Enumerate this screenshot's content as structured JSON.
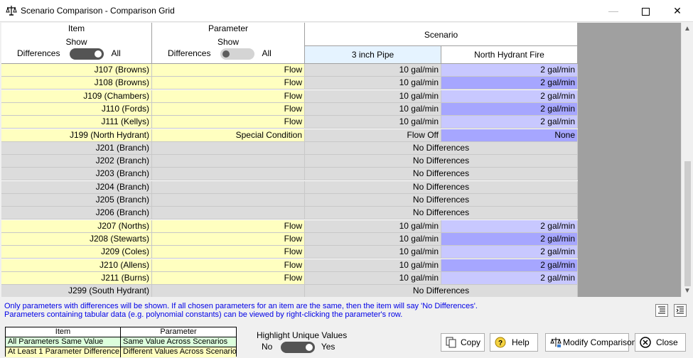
{
  "window": {
    "title": "Scenario Comparison - Comparison Grid",
    "icons": {
      "app": "scale-icon",
      "minimize": "minimize-icon",
      "maximize": "maximize-icon",
      "close": "close-icon"
    }
  },
  "grid": {
    "item_header": {
      "title": "Item",
      "show_label": "Show",
      "toggle_left": "Differences",
      "toggle_right": "All",
      "toggle_state": "all"
    },
    "param_header": {
      "title": "Parameter",
      "show_label": "Show",
      "toggle_left": "Differences",
      "toggle_right": "All",
      "toggle_state": "differences"
    },
    "scenario_header": {
      "title": "Scenario",
      "columns": [
        "3 inch Pipe",
        "North Hydrant Fire"
      ]
    },
    "rows": [
      {
        "item": "J107 (Browns)",
        "param": "Flow",
        "v1": "10 gal/min",
        "v2": "2 gal/min",
        "shade": "light"
      },
      {
        "item": "J108 (Browns)",
        "param": "Flow",
        "v1": "10 gal/min",
        "v2": "2 gal/min",
        "shade": "dark"
      },
      {
        "item": "J109 (Chambers)",
        "param": "Flow",
        "v1": "10 gal/min",
        "v2": "2 gal/min",
        "shade": "light"
      },
      {
        "item": "J110 (Fords)",
        "param": "Flow",
        "v1": "10 gal/min",
        "v2": "2 gal/min",
        "shade": "dark"
      },
      {
        "item": "J111 (Kellys)",
        "param": "Flow",
        "v1": "10 gal/min",
        "v2": "2 gal/min",
        "shade": "light"
      },
      {
        "item": "J199 (North Hydrant)",
        "param": "Special Condition",
        "v1": "Flow Off",
        "v2": "None",
        "shade": "dark"
      },
      {
        "item": "J201 (Branch)",
        "nodiff": "No Differences"
      },
      {
        "item": "J202 (Branch)",
        "nodiff": "No Differences"
      },
      {
        "item": "J203 (Branch)",
        "nodiff": "No Differences"
      },
      {
        "item": "J204 (Branch)",
        "nodiff": "No Differences"
      },
      {
        "item": "J205 (Branch)",
        "nodiff": "No Differences"
      },
      {
        "item": "J206 (Branch)",
        "nodiff": "No Differences"
      },
      {
        "item": "J207 (Norths)",
        "param": "Flow",
        "v1": "10 gal/min",
        "v2": "2 gal/min",
        "shade": "light"
      },
      {
        "item": "J208 (Stewarts)",
        "param": "Flow",
        "v1": "10 gal/min",
        "v2": "2 gal/min",
        "shade": "dark"
      },
      {
        "item": "J209 (Coles)",
        "param": "Flow",
        "v1": "10 gal/min",
        "v2": "2 gal/min",
        "shade": "light"
      },
      {
        "item": "J210 (Allens)",
        "param": "Flow",
        "v1": "10 gal/min",
        "v2": "2 gal/min",
        "shade": "dark"
      },
      {
        "item": "J211 (Burns)",
        "param": "Flow",
        "v1": "10 gal/min",
        "v2": "2 gal/min",
        "shade": "light"
      },
      {
        "item": "J299 (South Hydrant)",
        "nodiff": "No Differences"
      }
    ]
  },
  "notes": {
    "line1": "Only parameters with differences will be shown. If all chosen parameters for an item are the same, then the item will say 'No Differences'.",
    "line2": "Parameters containing tabular data (e.g. polynomial constants) can be viewed by right-clicking the parameter's row.",
    "tool_icons": [
      "collapse-rows-icon",
      "expand-rows-icon"
    ]
  },
  "legend": {
    "headers": [
      "Item",
      "Parameter"
    ],
    "rows": [
      [
        "All Parameters Same Value",
        "Same Value Across Scenarios"
      ],
      [
        "At Least 1 Parameter Difference",
        "Different Values Across Scenarios"
      ]
    ],
    "colors": {
      "same": "#dcffdc",
      "different": "#ffffc0"
    }
  },
  "highlight": {
    "label": "Highlight Unique Values",
    "no": "No",
    "yes": "Yes",
    "state": "yes"
  },
  "buttons": {
    "copy": "Copy",
    "help": "Help",
    "modify": "Modify Comparison",
    "close": "Close"
  },
  "colors": {
    "yellow_cell": "#ffffc0",
    "gray_cell": "#dcdcdc",
    "blue_dark": "#a6a6ff",
    "blue_light": "#c8c8ff",
    "note_text": "#0000e6"
  }
}
